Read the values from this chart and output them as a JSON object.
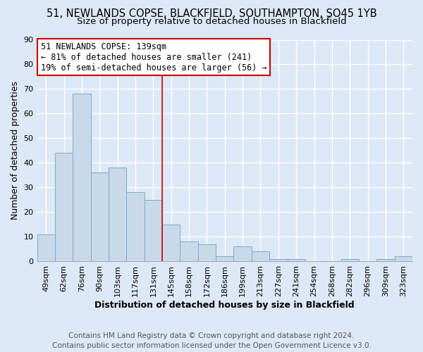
{
  "title_line1": "51, NEWLANDS COPSE, BLACKFIELD, SOUTHAMPTON, SO45 1YB",
  "title_line2": "Size of property relative to detached houses in Blackfield",
  "xlabel": "Distribution of detached houses by size in Blackfield",
  "ylabel": "Number of detached properties",
  "categories": [
    "49sqm",
    "62sqm",
    "76sqm",
    "90sqm",
    "103sqm",
    "117sqm",
    "131sqm",
    "145sqm",
    "158sqm",
    "172sqm",
    "186sqm",
    "199sqm",
    "213sqm",
    "227sqm",
    "241sqm",
    "254sqm",
    "268sqm",
    "282sqm",
    "296sqm",
    "309sqm",
    "323sqm"
  ],
  "values": [
    11,
    44,
    68,
    36,
    38,
    28,
    25,
    15,
    8,
    7,
    2,
    6,
    4,
    1,
    1,
    0,
    0,
    1,
    0,
    1,
    2
  ],
  "bar_color": "#c9d9ea",
  "bar_edge_color": "#7baac8",
  "ylim": [
    0,
    90
  ],
  "yticks": [
    0,
    10,
    20,
    30,
    40,
    50,
    60,
    70,
    80,
    90
  ],
  "vline_x": 6.5,
  "vline_color": "#cc0000",
  "annotation_title": "51 NEWLANDS COPSE: 139sqm",
  "annotation_line2": "← 81% of detached houses are smaller (241)",
  "annotation_line3": "19% of semi-detached houses are larger (56) →",
  "annotation_box_color": "#cc0000",
  "annotation_bg": "#ffffff",
  "footer_line1": "Contains HM Land Registry data © Crown copyright and database right 2024.",
  "footer_line2": "Contains public sector information licensed under the Open Government Licence v3.0.",
  "bg_color": "#dce8f5",
  "plot_bg_color": "#dce8f5",
  "grid_color": "#ffffff",
  "title_fontsize": 10.5,
  "subtitle_fontsize": 9.5,
  "axis_label_fontsize": 9,
  "tick_fontsize": 8,
  "annotation_fontsize": 8.5,
  "footer_fontsize": 7.5
}
